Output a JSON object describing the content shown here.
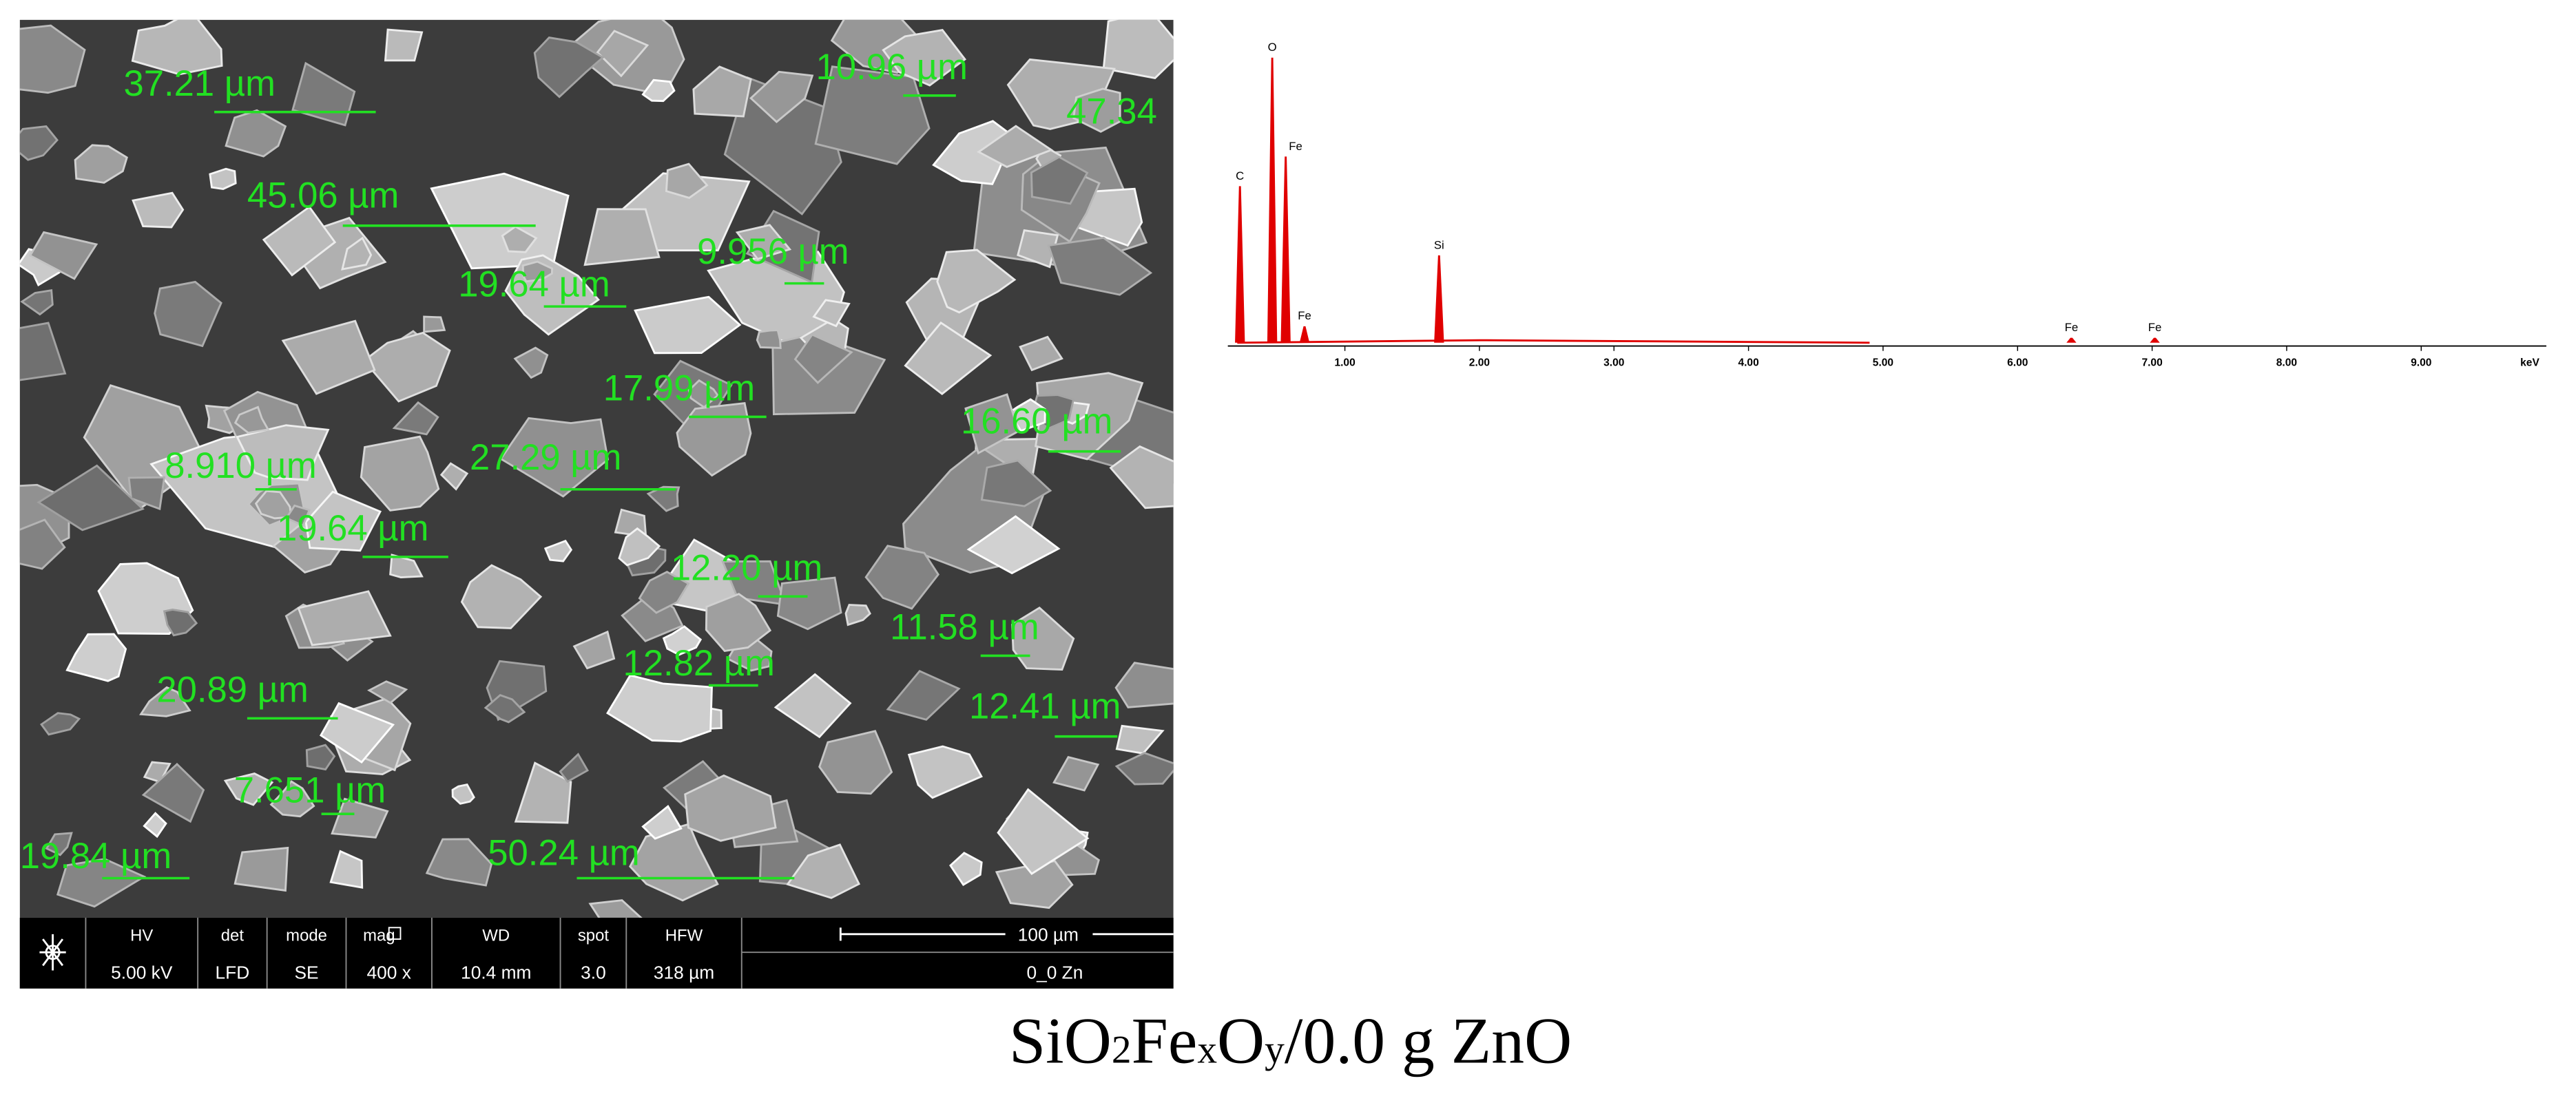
{
  "sem_image": {
    "measurements": [
      "37.21 µm",
      "10.96 µm",
      "47.34",
      "45.06 µm",
      "9.956 µm",
      "19.64 µm",
      "17.99 µm",
      "16.60 µm",
      "8.910 µm",
      "27.29 µm",
      "19.64 µm",
      "12.20 µm",
      "11.58 µm",
      "12.82 µm",
      "20.89 µm",
      "12.41 µm",
      "7.651 µm",
      "19.84 µm",
      "50.24 µm"
    ],
    "info_bar": {
      "columns": [
        {
          "header": "HV",
          "value": "5.00 kV"
        },
        {
          "header": "det",
          "value": "LFD"
        },
        {
          "header": "mode",
          "value": "SE"
        },
        {
          "header": "mag",
          "value": "400 x"
        },
        {
          "header": "WD",
          "value": "10.4 mm"
        },
        {
          "header": "spot",
          "value": "3.0"
        },
        {
          "header": "HFW",
          "value": "318 µm"
        }
      ],
      "scale_bar": "100 µm",
      "sample": "0_0 Zn"
    }
  },
  "chart_data": {
    "type": "spectrum",
    "labels": [
      "C",
      "O",
      "Fe",
      "Fe",
      "Si",
      "Fe",
      "Fe"
    ],
    "x": [
      0.22,
      0.46,
      0.56,
      0.7,
      1.7,
      6.4,
      7.02
    ],
    "values": [
      95,
      173,
      113,
      10,
      53,
      3,
      3
    ],
    "color": "#e00000",
    "xlim": [
      0.13,
      9.93
    ],
    "ylim": [
      0,
      180
    ],
    "xticks": [
      {
        "value": 1,
        "label": "1.00"
      },
      {
        "value": 2,
        "label": "2.00"
      },
      {
        "value": 3,
        "label": "3.00"
      },
      {
        "value": 4,
        "label": "4.00"
      },
      {
        "value": 5,
        "label": "5.00"
      },
      {
        "value": 6,
        "label": "6.00"
      },
      {
        "value": 7,
        "label": "7.00"
      },
      {
        "value": 8,
        "label": "8.00"
      },
      {
        "value": 9,
        "label": "9.00"
      }
    ],
    "x_label": "keV"
  },
  "caption": {
    "parts": [
      "SiO",
      "2",
      "Fe",
      "x",
      "O",
      "y",
      "/0.0 g ZnO"
    ]
  }
}
